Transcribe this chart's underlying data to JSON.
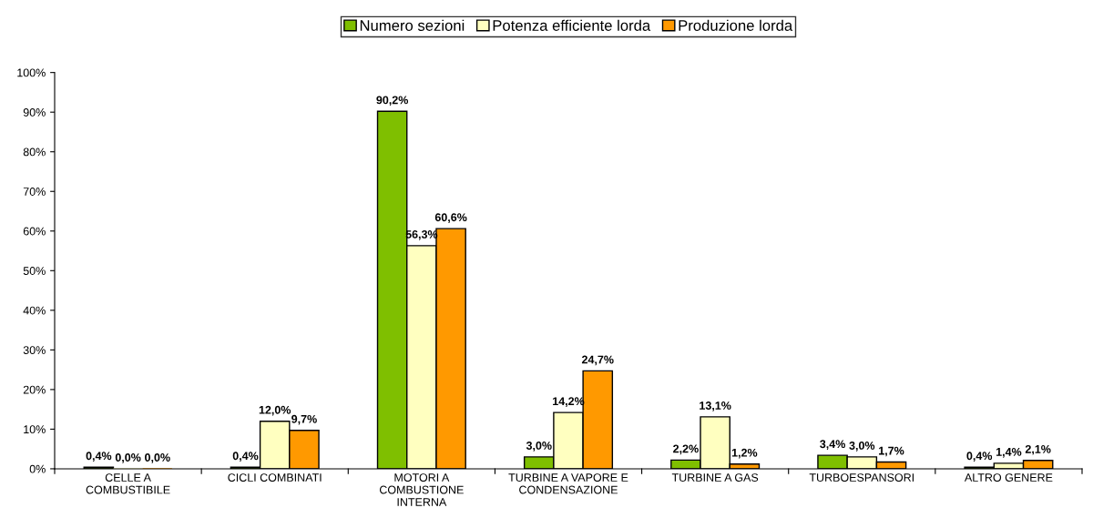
{
  "chart_data": {
    "type": "bar",
    "categories": [
      "CELLE A\nCOMBUSTIBILE",
      "CICLI COMBINATI",
      "MOTORI A\nCOMBUSTIONE\nINTERNA",
      "TURBINE A VAPORE E\nCONDENSAZIONE",
      "TURBINE A GAS",
      "TURBOESPANSORI",
      "ALTRO GENERE"
    ],
    "series": [
      {
        "name": "Numero sezioni",
        "color": "#7fbf00",
        "values": [
          0.4,
          0.4,
          90.2,
          3.0,
          2.2,
          3.4,
          0.4
        ],
        "value_labels": [
          "0,4%",
          "0,4%",
          "90,2%",
          "3,0%",
          "2,2%",
          "3,4%",
          "0,4%"
        ]
      },
      {
        "name": "Potenza efficiente lorda",
        "color": "#ffffc0",
        "values": [
          0.0,
          12.0,
          56.3,
          14.2,
          13.1,
          3.0,
          1.4
        ],
        "value_labels": [
          "0,0%",
          "12,0%",
          "56,3%",
          "14,2%",
          "13,1%",
          "3,0%",
          "1,4%"
        ]
      },
      {
        "name": "Produzione lorda",
        "color": "#ff9900",
        "values": [
          0.0,
          9.7,
          60.6,
          24.7,
          1.2,
          1.7,
          2.1
        ],
        "value_labels": [
          "0,0%",
          "9,7%",
          "60,6%",
          "24,7%",
          "1,2%",
          "1,7%",
          "2,1%"
        ]
      }
    ],
    "ylim": [
      0,
      100
    ],
    "yticks": [
      {
        "value": 0,
        "label": "0%"
      },
      {
        "value": 10,
        "label": "10%"
      },
      {
        "value": 20,
        "label": "20%"
      },
      {
        "value": 30,
        "label": "30%"
      },
      {
        "value": 40,
        "label": "40%"
      },
      {
        "value": 50,
        "label": "50%"
      },
      {
        "value": 60,
        "label": "60%"
      },
      {
        "value": 70,
        "label": "70%"
      },
      {
        "value": 80,
        "label": "80%"
      },
      {
        "value": 90,
        "label": "90%"
      },
      {
        "value": 100,
        "label": "100%"
      }
    ],
    "grid": false,
    "legend": "top"
  }
}
